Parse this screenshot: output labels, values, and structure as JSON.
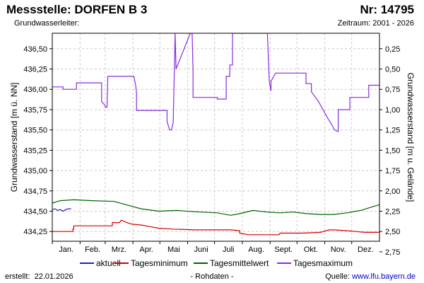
{
  "header": {
    "station": "Messstelle: DORFEN B 3",
    "number": "Nr: 14795",
    "aquifer": "Grundwasserleiter:",
    "period": "Zeitraum: 2001 - 2026"
  },
  "footer": {
    "created_label": "erstellt:",
    "created_date": "22.01.2026",
    "note": "- Rohdaten -",
    "source_label": "Quelle:",
    "source_link": "www.lfu.bayern.de"
  },
  "colors": {
    "aktuell": "#1f1fcc",
    "minimum": "#d40000",
    "mittel": "#006400",
    "maximum": "#8a2be2",
    "grid": "#c8c8c8"
  },
  "chart_data": {
    "type": "line",
    "categories": [
      "Jan.",
      "Feb.",
      "Mrz.",
      "Apr.",
      "Mai",
      "Juni",
      "Juli",
      "Aug.",
      "Sept.",
      "Okt.",
      "Nov.",
      "Dez."
    ],
    "x_domain": [
      1,
      366
    ],
    "ylabel": "Grundwasserstand [m ü. NN]",
    "ylabel_right": "Grundwasserstand [m u. Gelände]",
    "ylim": [
      434.13,
      436.69
    ],
    "yticks": [
      434.25,
      434.5,
      434.75,
      435.0,
      435.25,
      435.5,
      435.75,
      436.0,
      436.25,
      436.5
    ],
    "yticklabels": [
      "434,25",
      "434,50",
      "434,75",
      "435,00",
      "435,25",
      "435,50",
      "435,75",
      "436,00",
      "436,25",
      "436,50"
    ],
    "right_ticks": [
      2.75,
      2.5,
      2.25,
      2.0,
      1.75,
      1.5,
      1.25,
      1.0,
      0.75,
      0.5,
      0.25
    ],
    "right_ticklabels": [
      "2,75",
      "2,50",
      "2,25",
      "2,00",
      "1,75",
      "1,50",
      "1,25",
      "1,00",
      "0,75",
      "0,50",
      "0,25"
    ],
    "ground_level_offset": 436.75,
    "grid": true,
    "legend_position": "bottom",
    "series": [
      {
        "name": "aktuell",
        "color": "#1f1fcc",
        "x": [
          1,
          4,
          7,
          10,
          13,
          16,
          19,
          22
        ],
        "y": [
          434.52,
          434.53,
          434.51,
          434.52,
          434.5,
          434.52,
          434.53,
          434.53
        ]
      },
      {
        "name": "Tagesminimum",
        "color": "#d40000",
        "x": [
          1,
          24,
          24,
          25,
          25,
          68,
          68,
          76,
          78,
          84,
          90,
          100,
          110,
          120,
          135,
          160,
          200,
          210,
          210,
          220,
          240,
          254,
          255,
          270,
          280,
          300,
          310,
          315,
          330,
          350,
          366
        ],
        "y": [
          434.25,
          434.25,
          434.28,
          434.28,
          434.32,
          434.32,
          434.36,
          434.36,
          434.39,
          434.36,
          434.34,
          434.33,
          434.31,
          434.29,
          434.28,
          434.27,
          434.27,
          434.26,
          434.23,
          434.21,
          434.21,
          434.21,
          434.23,
          434.23,
          434.23,
          434.24,
          434.27,
          434.27,
          434.26,
          434.24,
          434.24
        ]
      },
      {
        "name": "Tagesmittelwert",
        "color": "#006400",
        "x": [
          1,
          10,
          25,
          45,
          70,
          80,
          100,
          120,
          140,
          165,
          185,
          200,
          210,
          225,
          240,
          255,
          270,
          285,
          300,
          315,
          330,
          345,
          360,
          366
        ],
        "y": [
          434.6,
          434.63,
          434.64,
          434.63,
          434.62,
          434.59,
          434.53,
          434.5,
          434.51,
          434.49,
          434.48,
          434.45,
          434.47,
          434.51,
          434.49,
          434.48,
          434.49,
          434.47,
          434.46,
          434.46,
          434.48,
          434.51,
          434.56,
          434.58
        ]
      },
      {
        "name": "Tagesmaximum",
        "color": "#8a2be2",
        "x": [
          1,
          13,
          13,
          28,
          28,
          56,
          56,
          60,
          60,
          62,
          63,
          63,
          92,
          94,
          95,
          95,
          129,
          129,
          132,
          134,
          136,
          136,
          138,
          138,
          139,
          155,
          157,
          158,
          158,
          185,
          185,
          195,
          195,
          199,
          199,
          202,
          202,
          241,
          243,
          245,
          245,
          250,
          255,
          255,
          284,
          284,
          289,
          290,
          290,
          298,
          303,
          308,
          312,
          316,
          320,
          320,
          333,
          333,
          354,
          354,
          366
        ],
        "y": [
          436.03,
          436.03,
          436.0,
          436.0,
          436.08,
          436.08,
          435.85,
          435.8,
          435.78,
          435.78,
          436.16,
          436.16,
          436.16,
          436.05,
          435.95,
          435.74,
          435.74,
          435.6,
          435.5,
          435.5,
          435.6,
          435.62,
          436.69,
          436.69,
          436.25,
          436.69,
          436.69,
          436.2,
          435.9,
          435.9,
          435.88,
          435.88,
          436.16,
          436.16,
          436.3,
          436.3,
          436.69,
          436.69,
          436.1,
          435.98,
          436.1,
          436.2,
          436.2,
          436.2,
          436.2,
          436.07,
          436.07,
          436.07,
          435.97,
          435.85,
          435.75,
          435.65,
          435.58,
          435.5,
          435.48,
          435.75,
          435.75,
          435.9,
          435.9,
          436.05,
          436.05
        ]
      }
    ]
  }
}
